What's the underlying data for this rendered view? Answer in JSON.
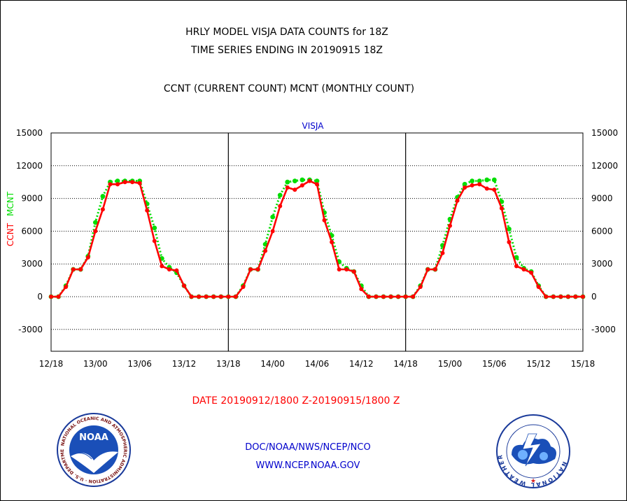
{
  "titles": {
    "line1": "HRLY MODEL VISJA DATA COUNTS for 18Z",
    "line2": "TIME SERIES ENDING IN 20190915 18Z",
    "line3": "CCNT (CURRENT COUNT) MCNT (MONTHLY COUNT)"
  },
  "footer": {
    "date_range": "DATE 20190912/1800 Z-20190915/1800 Z",
    "org": "DOC/NOAA/NWS/NCEP/NCO",
    "url": "WWW.NCEP.NOAA.GOV"
  },
  "logos": {
    "left_icon": "noaa-logo",
    "left_text": "NOAA",
    "left_ring_text": "NATIONAL OCEANIC AND ATMOSPHERIC ADMINISTRATION · U.S. DEPARTMENT OF COMMERCE",
    "right_icon": "nws-logo",
    "right_ring_text": "NATIONAL WEATHER SERVICE"
  },
  "colors": {
    "ccnt": "#ff0000",
    "mcnt": "#00dd00",
    "panel_title": "#0000cc"
  },
  "chart_data": {
    "type": "line",
    "title": "VISJA",
    "ylabel_parts": [
      {
        "text": "CCNT",
        "color": "#ff0000"
      },
      {
        "text": "MCNT",
        "color": "#00dd00"
      }
    ],
    "ylim": [
      -5000,
      15000
    ],
    "yticks": [
      15000,
      12000,
      9000,
      6000,
      3000,
      0,
      -3000
    ],
    "grid": true,
    "x_ticks": [
      "12/18",
      "13/00",
      "13/06",
      "13/12",
      "13/18",
      "14/00",
      "14/06",
      "14/12",
      "14/18",
      "15/00",
      "15/06",
      "15/12",
      "15/18"
    ],
    "x_hours": [
      0,
      72
    ],
    "day_separators_hours": [
      24,
      48
    ],
    "series": [
      {
        "name": "CCNT",
        "color": "#ff0000",
        "x_hours": [
          0,
          1,
          2,
          3,
          4,
          5,
          6,
          7,
          8,
          9,
          10,
          11,
          12,
          13,
          14,
          15,
          16,
          17,
          18,
          19,
          20,
          21,
          22,
          23,
          24,
          25,
          26,
          27,
          28,
          29,
          30,
          31,
          32,
          33,
          34,
          35,
          36,
          37,
          38,
          39,
          40,
          41,
          42,
          43,
          44,
          45,
          46,
          47,
          48,
          49,
          50,
          51,
          52,
          53,
          54,
          55,
          56,
          57,
          58,
          59,
          60,
          61,
          62,
          63,
          64,
          65,
          66,
          67,
          68,
          69,
          70,
          71,
          72
        ],
        "values": [
          0,
          0,
          900,
          2500,
          2500,
          3600,
          6000,
          8000,
          10300,
          10300,
          10500,
          10500,
          10400,
          7900,
          5100,
          2800,
          2500,
          2400,
          1000,
          0,
          0,
          0,
          0,
          0,
          0,
          0,
          900,
          2500,
          2500,
          4200,
          6000,
          8300,
          10000,
          9800,
          10200,
          10600,
          10300,
          7000,
          5000,
          2500,
          2500,
          2300,
          700,
          0,
          0,
          0,
          0,
          0,
          0,
          0,
          900,
          2500,
          2500,
          4000,
          6500,
          8800,
          10000,
          10200,
          10300,
          9900,
          9800,
          8100,
          5000,
          2800,
          2500,
          2200,
          900,
          0,
          0,
          0,
          0,
          0,
          0
        ]
      },
      {
        "name": "MCNT",
        "color": "#00dd00",
        "x_hours": [
          0,
          1,
          2,
          3,
          4,
          5,
          6,
          7,
          8,
          9,
          10,
          11,
          12,
          13,
          14,
          15,
          16,
          17,
          18,
          19,
          20,
          21,
          22,
          23,
          24,
          25,
          26,
          27,
          28,
          29,
          30,
          31,
          32,
          33,
          34,
          35,
          36,
          37,
          38,
          39,
          40,
          41,
          42,
          43,
          44,
          45,
          46,
          47,
          48,
          49,
          50,
          51,
          52,
          53,
          54,
          55,
          56,
          57,
          58,
          59,
          60,
          61,
          62,
          63,
          64,
          65,
          66,
          67,
          68,
          69,
          70,
          71,
          72
        ],
        "values": [
          0,
          0,
          1000,
          2500,
          2500,
          3700,
          6800,
          9200,
          10500,
          10600,
          10600,
          10600,
          10600,
          8500,
          6300,
          3500,
          2700,
          2200,
          1000,
          0,
          0,
          0,
          0,
          0,
          0,
          0,
          1000,
          2500,
          2500,
          4800,
          7300,
          9300,
          10500,
          10600,
          10700,
          10700,
          10600,
          7700,
          5600,
          3200,
          2600,
          2300,
          1000,
          0,
          0,
          0,
          0,
          0,
          0,
          0,
          1000,
          2500,
          2500,
          4700,
          7100,
          9100,
          10300,
          10600,
          10600,
          10700,
          10700,
          8700,
          6200,
          3600,
          2600,
          2300,
          1000,
          0,
          0,
          0,
          0,
          0,
          0
        ]
      }
    ]
  }
}
